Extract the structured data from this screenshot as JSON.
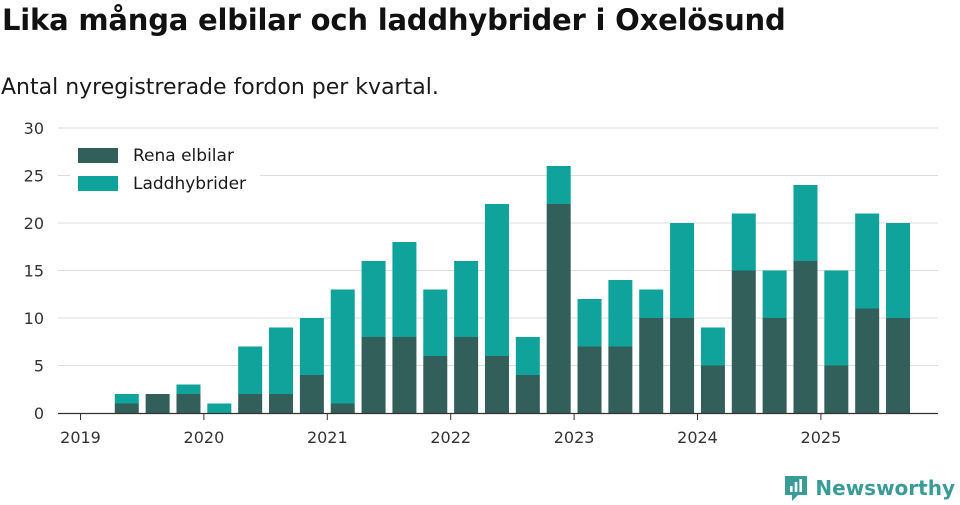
{
  "title": "Lika många elbilar och laddhybrider i Oxelösund",
  "subtitle": "Antal nyregistrerade fordon per kvartal.",
  "brand": {
    "name": "Newsworthy",
    "icon": "newsworthy-logo-icon"
  },
  "colors": {
    "rena_elbilar": "#335f5b",
    "laddhybrider": "#0fa39b",
    "grid": "#dddddd",
    "axis": "#333333"
  },
  "chart_data": {
    "type": "bar",
    "stacked": true,
    "title": "Lika många elbilar och laddhybrider i Oxelösund",
    "subtitle": "Antal nyregistrerade fordon per kvartal.",
    "xlabel": "",
    "ylabel": "",
    "ylim": [
      0,
      30
    ],
    "yticks": [
      0,
      5,
      10,
      15,
      20,
      25,
      30
    ],
    "xticks": [
      "2019",
      "2020",
      "2021",
      "2022",
      "2023",
      "2024",
      "2025"
    ],
    "legend_position": "top-left",
    "categories": [
      "2019 Q2",
      "2019 Q3",
      "2019 Q4",
      "2020 Q1",
      "2020 Q2",
      "2020 Q3",
      "2020 Q4",
      "2021 Q1",
      "2021 Q2",
      "2021 Q3",
      "2021 Q4",
      "2022 Q1",
      "2022 Q2",
      "2022 Q3",
      "2022 Q4",
      "2023 Q1",
      "2023 Q2",
      "2023 Q3",
      "2023 Q4",
      "2024 Q1",
      "2024 Q2",
      "2024 Q3",
      "2024 Q4",
      "2025 Q1",
      "2025 Q2",
      "2025 Q3"
    ],
    "series": [
      {
        "name": "Rena elbilar",
        "values": [
          1,
          2,
          2,
          0,
          2,
          2,
          4,
          1,
          8,
          8,
          6,
          8,
          6,
          4,
          22,
          7,
          7,
          10,
          10,
          5,
          15,
          10,
          16,
          5,
          11,
          10
        ]
      },
      {
        "name": "Laddhybrider",
        "values": [
          1,
          0,
          1,
          1,
          5,
          7,
          6,
          12,
          8,
          10,
          7,
          8,
          16,
          4,
          4,
          5,
          7,
          3,
          10,
          4,
          6,
          5,
          8,
          10,
          10,
          10
        ]
      }
    ]
  }
}
